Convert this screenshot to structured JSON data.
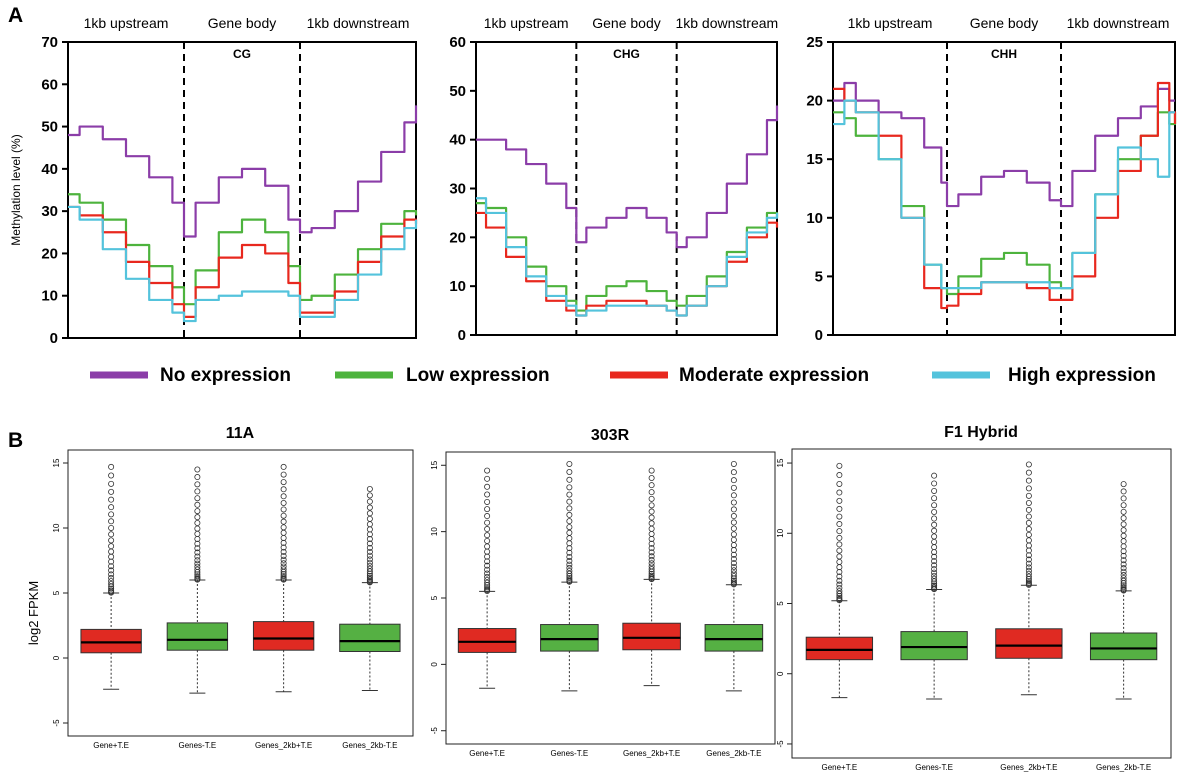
{
  "figure": {
    "panel_a_letter": "A",
    "panel_b_letter": "B"
  },
  "colors": {
    "no_expression": "#8B3DA8",
    "low_expression": "#4DB33D",
    "moderate_expression": "#E8281E",
    "high_expression": "#54C3DC",
    "box_red": "#E02A22",
    "box_green": "#55B043"
  },
  "legend": [
    {
      "label": "No expression",
      "color": "#8B3DA8"
    },
    {
      "label": "Low expression",
      "color": "#4DB33D"
    },
    {
      "label": "Moderate expression",
      "color": "#E8281E"
    },
    {
      "label": "High expression",
      "color": "#54C3DC"
    }
  ],
  "chart_data": [
    {
      "type": "line",
      "context": "CG",
      "region_labels": [
        "1kb upstream",
        "Gene body",
        "1kb downstream"
      ],
      "ylabel": "Methylation level (%)",
      "ylim": [
        0,
        70
      ],
      "yticks": [
        0,
        10,
        20,
        30,
        40,
        50,
        60,
        70
      ],
      "x_region_bounds": [
        0,
        1,
        2,
        3
      ],
      "series": [
        {
          "name": "No expression",
          "x": [
            0,
            0.1,
            0.3,
            0.5,
            0.7,
            0.9,
            1.0,
            1.1,
            1.3,
            1.5,
            1.7,
            1.9,
            2.0,
            2.1,
            2.3,
            2.5,
            2.7,
            2.9,
            3.0
          ],
          "y": [
            48,
            50,
            47,
            43,
            38,
            32,
            24,
            32,
            38,
            40,
            36,
            28,
            25,
            26,
            30,
            37,
            44,
            51,
            55
          ]
        },
        {
          "name": "Low expression",
          "x": [
            0,
            0.1,
            0.3,
            0.5,
            0.7,
            0.9,
            1.0,
            1.1,
            1.3,
            1.5,
            1.7,
            1.9,
            2.0,
            2.1,
            2.3,
            2.5,
            2.7,
            2.9,
            3.0
          ],
          "y": [
            34,
            32,
            28,
            22,
            17,
            12,
            8,
            16,
            25,
            28,
            25,
            17,
            9,
            10,
            15,
            21,
            27,
            30,
            29
          ]
        },
        {
          "name": "Moderate expression",
          "x": [
            0,
            0.1,
            0.3,
            0.5,
            0.7,
            0.9,
            1.0,
            1.1,
            1.3,
            1.5,
            1.7,
            1.9,
            2.0,
            2.1,
            2.3,
            2.5,
            2.7,
            2.9,
            3.0
          ],
          "y": [
            31,
            29,
            25,
            18,
            13,
            8,
            5,
            12,
            19,
            22,
            20,
            13,
            6,
            6,
            11,
            18,
            24,
            28,
            27
          ]
        },
        {
          "name": "High expression",
          "x": [
            0,
            0.1,
            0.3,
            0.5,
            0.7,
            0.9,
            1.0,
            1.1,
            1.3,
            1.5,
            1.7,
            1.9,
            2.0,
            2.1,
            2.3,
            2.5,
            2.7,
            2.9,
            3.0
          ],
          "y": [
            31,
            28,
            21,
            14,
            9,
            6,
            4,
            9,
            10,
            11,
            11,
            10,
            5,
            5,
            9,
            15,
            21,
            26,
            28
          ]
        }
      ]
    },
    {
      "type": "line",
      "context": "CHG",
      "region_labels": [
        "1kb upstream",
        "Gene body",
        "1kb downstream"
      ],
      "ylabel": "",
      "ylim": [
        0,
        60
      ],
      "yticks": [
        0,
        10,
        20,
        30,
        40,
        50,
        60
      ],
      "x_region_bounds": [
        0,
        1,
        2,
        3
      ],
      "series": [
        {
          "name": "No expression",
          "x": [
            0,
            0.1,
            0.3,
            0.5,
            0.7,
            0.9,
            1.0,
            1.1,
            1.3,
            1.5,
            1.7,
            1.9,
            2.0,
            2.1,
            2.3,
            2.5,
            2.7,
            2.9,
            3.0
          ],
          "y": [
            40,
            40,
            38,
            35,
            31,
            26,
            19,
            22,
            24,
            26,
            24,
            21,
            18,
            20,
            25,
            31,
            37,
            44,
            47
          ]
        },
        {
          "name": "Low expression",
          "x": [
            0,
            0.1,
            0.3,
            0.5,
            0.7,
            0.9,
            1.0,
            1.1,
            1.3,
            1.5,
            1.7,
            1.9,
            2.0,
            2.1,
            2.3,
            2.5,
            2.7,
            2.9,
            3.0
          ],
          "y": [
            27,
            26,
            20,
            14,
            10,
            7,
            5,
            8,
            10,
            11,
            9,
            7,
            6,
            8,
            12,
            17,
            22,
            25,
            24
          ]
        },
        {
          "name": "Moderate expression",
          "x": [
            0,
            0.1,
            0.3,
            0.5,
            0.7,
            0.9,
            1.0,
            1.1,
            1.3,
            1.5,
            1.7,
            1.9,
            2.0,
            2.1,
            2.3,
            2.5,
            2.7,
            2.9,
            3.0
          ],
          "y": [
            25,
            22,
            16,
            11,
            7,
            5,
            4,
            6,
            7,
            7,
            6,
            5,
            4,
            6,
            10,
            15,
            20,
            23,
            22
          ]
        },
        {
          "name": "High expression",
          "x": [
            0,
            0.1,
            0.3,
            0.5,
            0.7,
            0.9,
            1.0,
            1.1,
            1.3,
            1.5,
            1.7,
            1.9,
            2.0,
            2.1,
            2.3,
            2.5,
            2.7,
            2.9,
            3.0
          ],
          "y": [
            28,
            25,
            18,
            12,
            8,
            6,
            4,
            5,
            6,
            6,
            6,
            5,
            4,
            6,
            10,
            16,
            21,
            24,
            25
          ]
        }
      ]
    },
    {
      "type": "line",
      "context": "CHH",
      "region_labels": [
        "1kb upstream",
        "Gene body",
        "1kb downstream"
      ],
      "ylabel": "",
      "ylim": [
        0,
        25
      ],
      "yticks": [
        0,
        5,
        10,
        15,
        20,
        25
      ],
      "x_region_bounds": [
        0,
        1,
        2,
        3
      ],
      "series": [
        {
          "name": "No expression",
          "x": [
            0,
            0.1,
            0.2,
            0.4,
            0.6,
            0.8,
            0.95,
            1.0,
            1.1,
            1.3,
            1.5,
            1.7,
            1.9,
            2.0,
            2.1,
            2.3,
            2.5,
            2.7,
            2.85,
            2.95,
            3.0
          ],
          "y": [
            20,
            21.5,
            20,
            19,
            18.5,
            16,
            13,
            11,
            12,
            13.5,
            14,
            13,
            11.5,
            11,
            14,
            17,
            18.5,
            19.5,
            21,
            20,
            20
          ]
        },
        {
          "name": "Low expression",
          "x": [
            0,
            0.1,
            0.2,
            0.4,
            0.6,
            0.8,
            0.95,
            1.0,
            1.1,
            1.3,
            1.5,
            1.7,
            1.9,
            2.0,
            2.1,
            2.3,
            2.5,
            2.7,
            2.85,
            2.95,
            3.0
          ],
          "y": [
            19,
            18.5,
            17,
            15,
            11,
            6,
            4,
            3.5,
            5,
            6.5,
            7,
            6,
            4.5,
            4,
            7,
            12,
            15,
            17,
            19,
            18,
            19
          ]
        },
        {
          "name": "Moderate expression",
          "x": [
            0,
            0.1,
            0.2,
            0.4,
            0.6,
            0.8,
            0.95,
            1.0,
            1.1,
            1.3,
            1.5,
            1.7,
            1.9,
            2.0,
            2.1,
            2.3,
            2.5,
            2.7,
            2.85,
            2.95,
            3.0
          ],
          "y": [
            21,
            20,
            19,
            17,
            10,
            4,
            2.3,
            2.5,
            3.5,
            4.5,
            4.5,
            4,
            3,
            3,
            5,
            10,
            14,
            17,
            21.5,
            19,
            18
          ]
        },
        {
          "name": "High expression",
          "x": [
            0,
            0.1,
            0.2,
            0.4,
            0.6,
            0.8,
            0.95,
            1.0,
            1.1,
            1.3,
            1.5,
            1.7,
            1.9,
            2.0,
            2.1,
            2.3,
            2.5,
            2.7,
            2.85,
            2.95,
            3.0
          ],
          "y": [
            18,
            20,
            19,
            15,
            10,
            6,
            4,
            4,
            4,
            4.5,
            4.5,
            4.5,
            4,
            4,
            7,
            12,
            16,
            15,
            13.5,
            19,
            19
          ]
        }
      ]
    },
    {
      "type": "box",
      "title": "11A",
      "ylabel": "log2 FPKM",
      "ylim": [
        -6,
        16
      ],
      "yticks": [
        -5,
        0,
        5,
        10,
        15
      ],
      "categories": [
        "Gene+T.E",
        "Genes-T.E",
        "Genes_2kb+T.E",
        "Genes_2kb-T.E"
      ],
      "box_colors": [
        "red",
        "green",
        "red",
        "green"
      ],
      "boxes": [
        {
          "lower_whisker": -2.4,
          "q1": 0.4,
          "median": 1.2,
          "q3": 2.2,
          "upper_whisker": 5.0,
          "outlier_max": 14.7
        },
        {
          "lower_whisker": -2.7,
          "q1": 0.6,
          "median": 1.4,
          "q3": 2.7,
          "upper_whisker": 6.0,
          "outlier_max": 14.5
        },
        {
          "lower_whisker": -2.6,
          "q1": 0.6,
          "median": 1.5,
          "q3": 2.8,
          "upper_whisker": 6.0,
          "outlier_max": 14.7
        },
        {
          "lower_whisker": -2.5,
          "q1": 0.5,
          "median": 1.3,
          "q3": 2.6,
          "upper_whisker": 5.8,
          "outlier_max": 13.0
        }
      ]
    },
    {
      "type": "box",
      "title": "303R",
      "ylabel": "",
      "ylim": [
        -6,
        16
      ],
      "yticks": [
        -5,
        0,
        5,
        10,
        15
      ],
      "categories": [
        "Gene+T.E",
        "Genes-T.E",
        "Genes_2kb+T.E",
        "Genes_2kb-T.E"
      ],
      "box_colors": [
        "red",
        "green",
        "red",
        "green"
      ],
      "boxes": [
        {
          "lower_whisker": -1.8,
          "q1": 0.9,
          "median": 1.7,
          "q3": 2.7,
          "upper_whisker": 5.5,
          "outlier_max": 14.6
        },
        {
          "lower_whisker": -2.0,
          "q1": 1.0,
          "median": 1.9,
          "q3": 3.0,
          "upper_whisker": 6.2,
          "outlier_max": 15.1
        },
        {
          "lower_whisker": -1.6,
          "q1": 1.1,
          "median": 2.0,
          "q3": 3.1,
          "upper_whisker": 6.4,
          "outlier_max": 14.6
        },
        {
          "lower_whisker": -2.0,
          "q1": 1.0,
          "median": 1.9,
          "q3": 3.0,
          "upper_whisker": 6.0,
          "outlier_max": 15.1
        }
      ]
    },
    {
      "type": "box",
      "title": "F1 Hybrid",
      "ylabel": "",
      "ylim": [
        -6,
        16
      ],
      "yticks": [
        -5,
        0,
        5,
        10,
        15
      ],
      "categories": [
        "Gene+T.E",
        "Genes-T.E",
        "Genes_2kb+T.E",
        "Genes_2kb-T.E"
      ],
      "box_colors": [
        "red",
        "green",
        "red",
        "green"
      ],
      "boxes": [
        {
          "lower_whisker": -1.7,
          "q1": 1.0,
          "median": 1.7,
          "q3": 2.6,
          "upper_whisker": 5.2,
          "outlier_max": 14.8
        },
        {
          "lower_whisker": -1.8,
          "q1": 1.0,
          "median": 1.9,
          "q3": 3.0,
          "upper_whisker": 6.0,
          "outlier_max": 14.1
        },
        {
          "lower_whisker": -1.5,
          "q1": 1.1,
          "median": 2.0,
          "q3": 3.2,
          "upper_whisker": 6.3,
          "outlier_max": 14.9
        },
        {
          "lower_whisker": -1.8,
          "q1": 1.0,
          "median": 1.8,
          "q3": 2.9,
          "upper_whisker": 5.9,
          "outlier_max": 13.5
        }
      ]
    }
  ]
}
